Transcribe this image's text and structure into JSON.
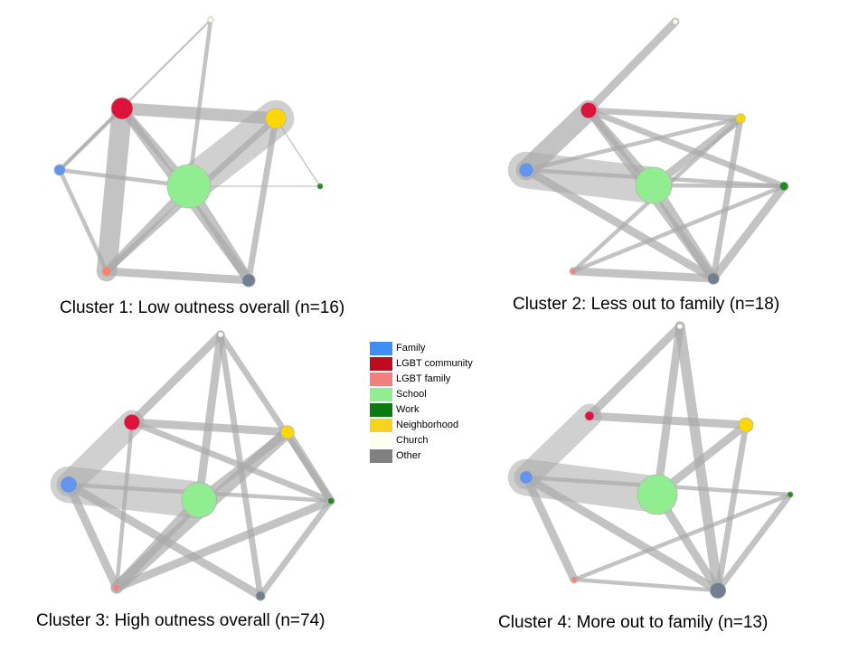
{
  "legend": [
    {
      "key": "family",
      "label": "Family",
      "color": "#3f8ef5"
    },
    {
      "key": "lgbt_community",
      "label": "LGBT community",
      "color": "#c00a1e"
    },
    {
      "key": "lgbt_family",
      "label": "LGBT family",
      "color": "#f08080"
    },
    {
      "key": "school",
      "label": "School",
      "color": "#90ee90"
    },
    {
      "key": "work",
      "label": "Work",
      "color": "#0a7a12"
    },
    {
      "key": "neighborhood",
      "label": "Neighborhood",
      "color": "#f7d21e"
    },
    {
      "key": "church",
      "label": "Church",
      "color": "#fffff0"
    },
    {
      "key": "other",
      "label": "Other",
      "color": "#808080"
    }
  ],
  "node_colors": {
    "family": "#6495ed",
    "lgbt_community": "#dc143c",
    "lgbt_family": "#fa8072",
    "school": "#90ee90",
    "work": "#228b22",
    "neighborhood": "#ffd700",
    "church": "#fffff0",
    "other": "#708090"
  },
  "edge_color": "#a9a9a9",
  "clusters": [
    {
      "id": "cluster-1",
      "caption": "Cluster 1: Low outness overall (n=16)",
      "nodes": [
        {
          "key": "family",
          "size": 1.5
        },
        {
          "key": "lgbt_community",
          "size": 3
        },
        {
          "key": "lgbt_family",
          "size": 1.3
        },
        {
          "key": "school",
          "size": 6
        },
        {
          "key": "work",
          "size": 0.8
        },
        {
          "key": "neighborhood",
          "size": 2.8
        },
        {
          "key": "church",
          "size": 0.8
        },
        {
          "key": "other",
          "size": 1.8
        }
      ],
      "edges": [
        {
          "from": "lgbt_community",
          "to": "neighborhood",
          "weight": 3
        },
        {
          "from": "lgbt_community",
          "to": "lgbt_family",
          "weight": 5
        },
        {
          "from": "lgbt_community",
          "to": "school",
          "weight": 2
        },
        {
          "from": "lgbt_community",
          "to": "other",
          "weight": 2
        },
        {
          "from": "lgbt_community",
          "to": "family",
          "weight": 1
        },
        {
          "from": "school",
          "to": "neighborhood",
          "weight": 9
        },
        {
          "from": "school",
          "to": "lgbt_family",
          "weight": 2
        },
        {
          "from": "school",
          "to": "other",
          "weight": 2.5
        },
        {
          "from": "school",
          "to": "family",
          "weight": 1
        },
        {
          "from": "school",
          "to": "church",
          "weight": 1
        },
        {
          "from": "neighborhood",
          "to": "other",
          "weight": 1.5
        },
        {
          "from": "neighborhood",
          "to": "lgbt_family",
          "weight": 1.5
        },
        {
          "from": "lgbt_family",
          "to": "other",
          "weight": 2
        },
        {
          "from": "family",
          "to": "lgbt_family",
          "weight": 1
        },
        {
          "from": "family",
          "to": "church",
          "weight": 0.5
        },
        {
          "from": "work",
          "to": "school",
          "weight": 0.3
        },
        {
          "from": "work",
          "to": "neighborhood",
          "weight": 0.3
        }
      ]
    },
    {
      "id": "cluster-2",
      "caption": "Cluster 2: Less out to family (n=18)",
      "nodes": [
        {
          "key": "family",
          "size": 2
        },
        {
          "key": "lgbt_community",
          "size": 2.2
        },
        {
          "key": "lgbt_family",
          "size": 0.8
        },
        {
          "key": "school",
          "size": 5
        },
        {
          "key": "work",
          "size": 1.2
        },
        {
          "key": "neighborhood",
          "size": 1.3
        },
        {
          "key": "church",
          "size": 0.8
        },
        {
          "key": "other",
          "size": 1.6
        }
      ],
      "edges": [
        {
          "from": "family",
          "to": "school",
          "weight": 9
        },
        {
          "from": "family",
          "to": "lgbt_community",
          "weight": 5
        },
        {
          "from": "family",
          "to": "other",
          "weight": 2
        },
        {
          "from": "family",
          "to": "neighborhood",
          "weight": 1
        },
        {
          "from": "family",
          "to": "work",
          "weight": 1
        },
        {
          "from": "lgbt_community",
          "to": "church",
          "weight": 2
        },
        {
          "from": "lgbt_community",
          "to": "school",
          "weight": 2
        },
        {
          "from": "lgbt_community",
          "to": "neighborhood",
          "weight": 1.5
        },
        {
          "from": "lgbt_community",
          "to": "work",
          "weight": 1.5
        },
        {
          "from": "lgbt_community",
          "to": "other",
          "weight": 2
        },
        {
          "from": "school",
          "to": "neighborhood",
          "weight": 2
        },
        {
          "from": "school",
          "to": "other",
          "weight": 2.5
        },
        {
          "from": "school",
          "to": "work",
          "weight": 1
        },
        {
          "from": "neighborhood",
          "to": "other",
          "weight": 1.5
        },
        {
          "from": "work",
          "to": "other",
          "weight": 2
        },
        {
          "from": "lgbt_family",
          "to": "other",
          "weight": 2
        },
        {
          "from": "lgbt_family",
          "to": "neighborhood",
          "weight": 1
        },
        {
          "from": "lgbt_family",
          "to": "work",
          "weight": 1
        }
      ]
    },
    {
      "id": "cluster-3",
      "caption": "Cluster 3: High outness overall (n=74)",
      "nodes": [
        {
          "key": "family",
          "size": 2.3
        },
        {
          "key": "lgbt_community",
          "size": 2.2
        },
        {
          "key": "lgbt_family",
          "size": 0.9
        },
        {
          "key": "school",
          "size": 4.8
        },
        {
          "key": "work",
          "size": 0.9
        },
        {
          "key": "neighborhood",
          "size": 1.8
        },
        {
          "key": "church",
          "size": 0.8
        },
        {
          "key": "other",
          "size": 1.3
        }
      ],
      "edges": [
        {
          "from": "family",
          "to": "school",
          "weight": 9
        },
        {
          "from": "family",
          "to": "lgbt_community",
          "weight": 6
        },
        {
          "from": "family",
          "to": "lgbt_family",
          "weight": 2
        },
        {
          "from": "family",
          "to": "other",
          "weight": 2
        },
        {
          "from": "family",
          "to": "work",
          "weight": 1
        },
        {
          "from": "lgbt_community",
          "to": "church",
          "weight": 2
        },
        {
          "from": "lgbt_community",
          "to": "neighborhood",
          "weight": 2
        },
        {
          "from": "lgbt_community",
          "to": "work",
          "weight": 1.5
        },
        {
          "from": "lgbt_community",
          "to": "lgbt_family",
          "weight": 1
        },
        {
          "from": "church",
          "to": "school",
          "weight": 2
        },
        {
          "from": "church",
          "to": "other",
          "weight": 1.5
        },
        {
          "from": "church",
          "to": "work",
          "weight": 1.5
        },
        {
          "from": "school",
          "to": "neighborhood",
          "weight": 2
        },
        {
          "from": "school",
          "to": "lgbt_family",
          "weight": 2.5
        },
        {
          "from": "neighborhood",
          "to": "lgbt_family",
          "weight": 3
        },
        {
          "from": "neighborhood",
          "to": "work",
          "weight": 2
        },
        {
          "from": "work",
          "to": "lgbt_family",
          "weight": 2
        },
        {
          "from": "work",
          "to": "other",
          "weight": 1.5
        }
      ]
    },
    {
      "id": "cluster-4",
      "caption": "Cluster 4: More out to family (n=13)",
      "nodes": [
        {
          "key": "family",
          "size": 1.8
        },
        {
          "key": "lgbt_community",
          "size": 1.3
        },
        {
          "key": "lgbt_family",
          "size": 0.8
        },
        {
          "key": "school",
          "size": 5.5
        },
        {
          "key": "work",
          "size": 0.8
        },
        {
          "key": "neighborhood",
          "size": 2
        },
        {
          "key": "church",
          "size": 0.8
        },
        {
          "key": "other",
          "size": 2.2
        }
      ],
      "edges": [
        {
          "from": "family",
          "to": "school",
          "weight": 9
        },
        {
          "from": "family",
          "to": "lgbt_community",
          "weight": 6
        },
        {
          "from": "family",
          "to": "lgbt_family",
          "weight": 2
        },
        {
          "from": "family",
          "to": "other",
          "weight": 2
        },
        {
          "from": "family",
          "to": "work",
          "weight": 1
        },
        {
          "from": "lgbt_community",
          "to": "church",
          "weight": 2
        },
        {
          "from": "lgbt_community",
          "to": "neighborhood",
          "weight": 2
        },
        {
          "from": "church",
          "to": "school",
          "weight": 2
        },
        {
          "from": "church",
          "to": "other",
          "weight": 2.5
        },
        {
          "from": "school",
          "to": "neighborhood",
          "weight": 2
        },
        {
          "from": "school",
          "to": "other",
          "weight": 2
        },
        {
          "from": "neighborhood",
          "to": "other",
          "weight": 1.5
        },
        {
          "from": "work",
          "to": "other",
          "weight": 1.5
        },
        {
          "from": "work",
          "to": "lgbt_family",
          "weight": 1
        },
        {
          "from": "other",
          "to": "lgbt_family",
          "weight": 1
        }
      ]
    }
  ]
}
